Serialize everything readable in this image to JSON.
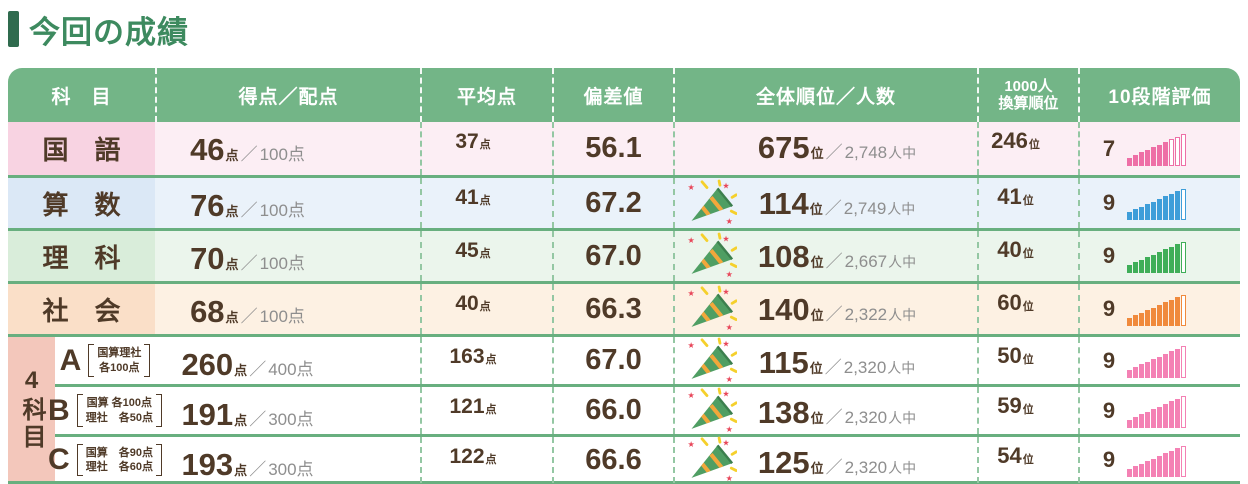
{
  "title": "今回の成績",
  "colors": {
    "header_green": "#73b587",
    "line_green": "#68af7f",
    "title_green": "#3d8a5f",
    "text_brown": "#4f3a28",
    "unit_gray": "#8e8e8e",
    "four_label_bg": "#f3c7bb"
  },
  "table": {
    "headers": {
      "subject": "科　目",
      "score": "得点／配点",
      "average": "平均点",
      "deviation": "偏差値",
      "rank": "全体順位／人数",
      "converted_line1": "1000人",
      "converted_line2": "換算順位",
      "grade": "10段階評価"
    },
    "units": {
      "points": "点",
      "slash": "／",
      "rank": "位",
      "people": "人中"
    },
    "rows": [
      {
        "subject": "国　語",
        "score": "46",
        "max": "100点",
        "average": "37",
        "deviation": "56.1",
        "rank": "675",
        "total": "2,748",
        "converted": "246",
        "grade": "7",
        "bars": 7,
        "popper": false,
        "bar_color": "#ee6fa6",
        "cell_bg": "#f8d3e2",
        "row_bg": "#fceef4"
      },
      {
        "subject": "算　数",
        "score": "76",
        "max": "100点",
        "average": "41",
        "deviation": "67.2",
        "rank": "114",
        "total": "2,749",
        "converted": "41",
        "grade": "9",
        "bars": 9,
        "popper": true,
        "bar_color": "#3e9ed9",
        "cell_bg": "#dbe8f6",
        "row_bg": "#eaf2fa"
      },
      {
        "subject": "理　科",
        "score": "70",
        "max": "100点",
        "average": "45",
        "deviation": "67.0",
        "rank": "108",
        "total": "2,667",
        "converted": "40",
        "grade": "9",
        "bars": 9,
        "popper": true,
        "bar_color": "#3fae58",
        "cell_bg": "#d9edda",
        "row_bg": "#ebf5ec"
      },
      {
        "subject": "社　会",
        "score": "68",
        "max": "100点",
        "average": "40",
        "deviation": "66.3",
        "rank": "140",
        "total": "2,322",
        "converted": "60",
        "grade": "9",
        "bars": 9,
        "popper": true,
        "bar_color": "#f08a3c",
        "cell_bg": "#fadfc8",
        "row_bg": "#fdf1e3"
      }
    ],
    "four_subjects": {
      "label": "4科目",
      "rows": [
        {
          "letter": "A",
          "note_line1": "国算理社",
          "note_line2": "各100点",
          "score": "260",
          "max": "400点",
          "average": "163",
          "deviation": "67.0",
          "rank": "115",
          "total": "2,320",
          "converted": "50",
          "grade": "9",
          "bars": 9,
          "popper": true,
          "bar_color": "#f481b4",
          "cell_bg": "#ffffff",
          "row_bg": "#ffffff"
        },
        {
          "letter": "B",
          "note_line1": "国算 各100点",
          "note_line2": "理社　各50点",
          "score": "191",
          "max": "300点",
          "average": "121",
          "deviation": "66.0",
          "rank": "138",
          "total": "2,320",
          "converted": "59",
          "grade": "9",
          "bars": 9,
          "popper": true,
          "bar_color": "#f481b4",
          "cell_bg": "#ffffff",
          "row_bg": "#ffffff"
        },
        {
          "letter": "C",
          "note_line1": "国算　各90点",
          "note_line2": "理社　各60点",
          "score": "193",
          "max": "300点",
          "average": "122",
          "deviation": "66.6",
          "rank": "125",
          "total": "2,320",
          "converted": "54",
          "grade": "9",
          "bars": 9,
          "popper": true,
          "bar_color": "#f481b4",
          "cell_bg": "#ffffff",
          "row_bg": "#ffffff"
        }
      ]
    }
  }
}
